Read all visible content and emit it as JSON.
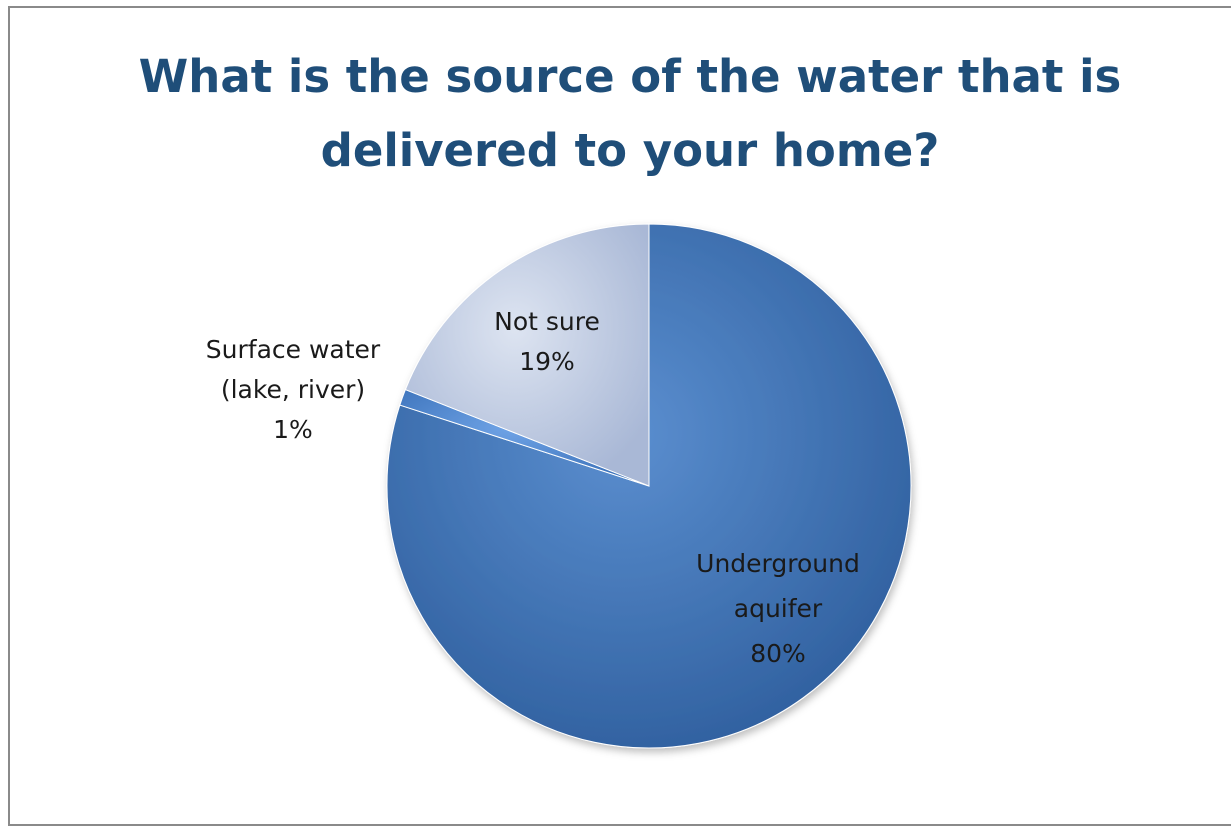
{
  "chart_data": {
    "type": "pie",
    "title": "What is the source of the water that is delivered to your home?",
    "slices": [
      {
        "name": "Underground aquifer",
        "label_lines": [
          "Underground",
          "aquifer",
          "80%"
        ],
        "value": 80,
        "color": "#3f74b6"
      },
      {
        "name": "Surface water (lake, river)",
        "label_lines": [
          "Surface water",
          "(lake, river)",
          "1%"
        ],
        "value": 1,
        "color": "#4a86d0"
      },
      {
        "name": "Not sure",
        "label_lines": [
          "Not sure",
          "19%"
        ],
        "value": 19,
        "color": "#c2cde3"
      }
    ],
    "legend": "none"
  }
}
